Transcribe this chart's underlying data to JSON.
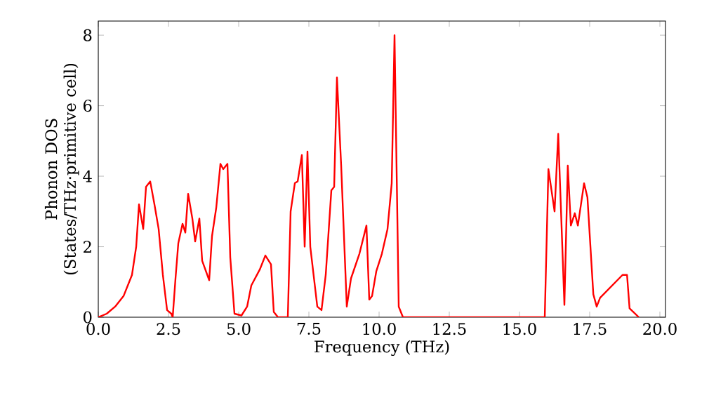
{
  "chart_data": {
    "type": "line",
    "xlabel": "Frequency (THz)",
    "ylabel": "Phonon DOS (States/THz·primitive cell)",
    "x": [
      0,
      0.3,
      0.6,
      0.9,
      1.2,
      1.35,
      1.45,
      1.6,
      1.7,
      1.85,
      2.0,
      2.15,
      2.3,
      2.45,
      2.6,
      2.65,
      2.75,
      2.85,
      3.0,
      3.1,
      3.2,
      3.35,
      3.45,
      3.6,
      3.7,
      3.95,
      4.05,
      4.2,
      4.35,
      4.45,
      4.6,
      4.7,
      4.85,
      5.1,
      5.3,
      5.45,
      5.75,
      5.95,
      6.15,
      6.25,
      6.4,
      6.75,
      6.85,
      7.0,
      7.1,
      7.25,
      7.35,
      7.45,
      7.55,
      7.8,
      7.95,
      8.1,
      8.3,
      8.4,
      8.5,
      8.65,
      8.85,
      9.0,
      9.3,
      9.55,
      9.65,
      9.75,
      9.9,
      10.1,
      10.3,
      10.45,
      10.55,
      10.7,
      10.85,
      12,
      14,
      15.9,
      16.03,
      16.25,
      16.38,
      16.6,
      16.72,
      16.83,
      16.97,
      17.08,
      17.3,
      17.42,
      17.63,
      17.75,
      17.87,
      18.67,
      18.83,
      18.92,
      19.25
    ],
    "series": [
      {
        "color": "#ff0000",
        "values": [
          0,
          0.1,
          0.3,
          0.6,
          1.2,
          2.0,
          3.2,
          2.5,
          3.7,
          3.85,
          3.2,
          2.5,
          1.2,
          0.2,
          0.1,
          0,
          1.1,
          2.1,
          2.65,
          2.4,
          3.5,
          2.8,
          2.15,
          2.8,
          1.6,
          1.05,
          2.3,
          3.1,
          4.35,
          4.2,
          4.35,
          1.7,
          0.1,
          0.05,
          0.3,
          0.9,
          1.35,
          1.75,
          1.5,
          0.15,
          0,
          0,
          3.0,
          3.8,
          3.85,
          4.6,
          2.0,
          4.7,
          2.0,
          0.3,
          0.2,
          1.2,
          3.6,
          3.7,
          6.8,
          4.3,
          0.3,
          1.1,
          1.8,
          2.6,
          0.5,
          0.6,
          1.3,
          1.8,
          2.5,
          3.8,
          8.0,
          0.3,
          0,
          0,
          0,
          0,
          4.2,
          3.0,
          5.2,
          0.35,
          4.3,
          2.6,
          2.95,
          2.6,
          3.8,
          3.4,
          0.65,
          0.3,
          0.55,
          1.2,
          1.2,
          0.25,
          0
        ]
      }
    ],
    "xlim": [
      0,
      20.2
    ],
    "ylim": [
      0,
      8.4
    ],
    "xticks": [
      {
        "value": 0,
        "label": "0.0"
      },
      {
        "value": 2.5,
        "label": "2.5"
      },
      {
        "value": 5,
        "label": "5.0"
      },
      {
        "value": 7.5,
        "label": "7.5"
      },
      {
        "value": 10,
        "label": "10.0"
      },
      {
        "value": 12.5,
        "label": "12.5"
      },
      {
        "value": 15,
        "label": "15.0"
      },
      {
        "value": 17.5,
        "label": "17.5"
      },
      {
        "value": 20,
        "label": "20.0"
      }
    ],
    "yticks": [
      0,
      2,
      4,
      6,
      8
    ],
    "marker": "none",
    "line_style": "solid"
  }
}
